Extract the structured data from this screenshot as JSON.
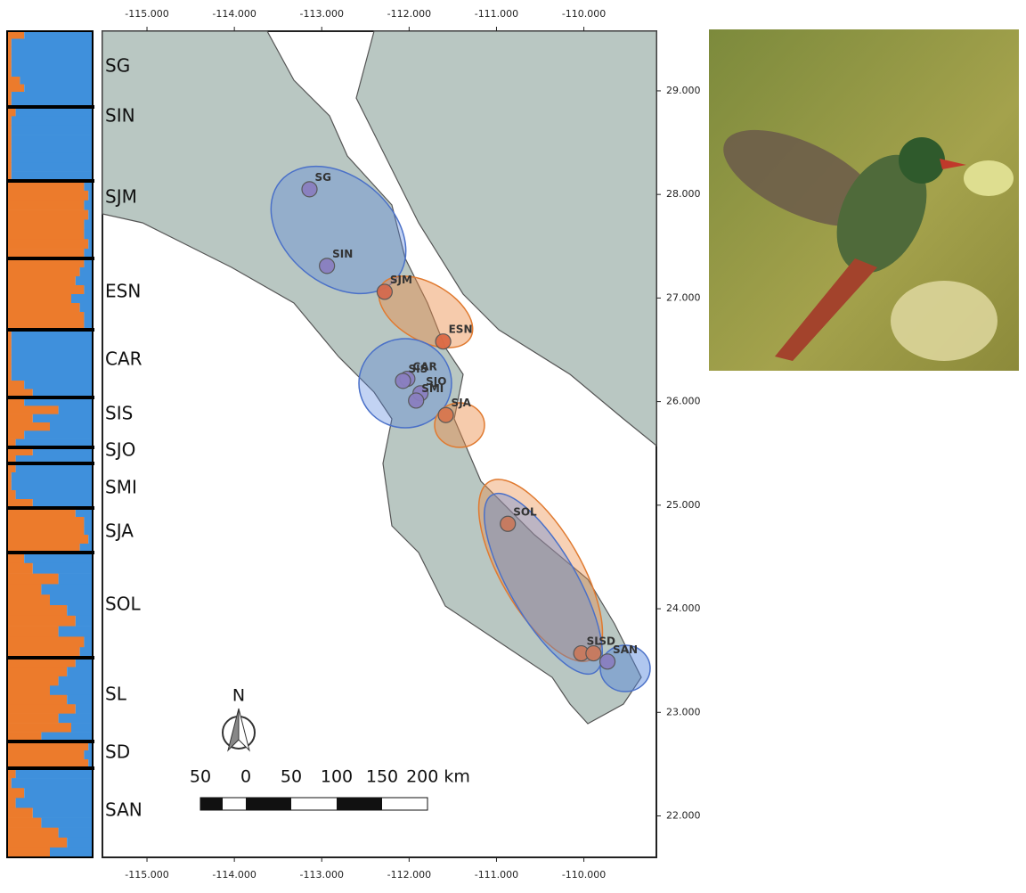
{
  "structure": {
    "groups": [
      {
        "label": "SG",
        "q": [
          0.2,
          0.05,
          0.05,
          0.05,
          0.05,
          0.05,
          0.15,
          0.2,
          0.05,
          0.05
        ]
      },
      {
        "label": "SIN",
        "q": [
          0.1,
          0.05,
          0.05,
          0.05,
          0.05,
          0.05,
          0.05,
          0.05
        ]
      },
      {
        "label": "SJM",
        "q": [
          0.9,
          0.95,
          0.9,
          0.95,
          0.9,
          0.9,
          0.95,
          0.9
        ]
      },
      {
        "label": "ESN",
        "q": [
          0.9,
          0.85,
          0.8,
          0.9,
          0.75,
          0.85,
          0.9,
          0.9
        ]
      },
      {
        "label": "CAR",
        "q": [
          0.05,
          0.05,
          0.05,
          0.05,
          0.05,
          0.05,
          0.2,
          0.3
        ]
      },
      {
        "label": "SIS",
        "q": [
          0.2,
          0.6,
          0.3,
          0.5,
          0.2,
          0.1
        ]
      },
      {
        "label": "SJO",
        "q": [
          0.3,
          0.1
        ]
      },
      {
        "label": "SMI",
        "q": [
          0.1,
          0.05,
          0.05,
          0.1,
          0.3
        ]
      },
      {
        "label": "SJA",
        "q": [
          0.8,
          0.9,
          0.9,
          0.95,
          0.85
        ]
      },
      {
        "label": "SOL",
        "q": [
          0.2,
          0.3,
          0.6,
          0.4,
          0.5,
          0.7,
          0.8,
          0.6,
          0.9,
          0.85
        ]
      },
      {
        "label": "SL",
        "q": [
          0.8,
          0.7,
          0.6,
          0.5,
          0.7,
          0.8,
          0.6,
          0.75,
          0.4
        ]
      },
      {
        "label": "SD",
        "q": [
          0.95,
          0.9,
          0.95
        ]
      },
      {
        "label": "SAN",
        "q": [
          0.1,
          0.05,
          0.2,
          0.1,
          0.3,
          0.4,
          0.6,
          0.7,
          0.5
        ]
      }
    ],
    "colors": [
      "#ec7b2c",
      "#3f90dc"
    ]
  },
  "map": {
    "xlim": [
      -115.51,
      -109.17
    ],
    "ylim": [
      21.6,
      29.576
    ],
    "xticks": [
      {
        "value": -115,
        "label": "-115.000"
      },
      {
        "value": -114,
        "label": "-114.000"
      },
      {
        "value": -113,
        "label": "-113.000"
      },
      {
        "value": -112,
        "label": "-112.000"
      },
      {
        "value": -111,
        "label": "-111.000"
      },
      {
        "value": -110,
        "label": "-110.000"
      }
    ],
    "yticks": [
      {
        "value": 29,
        "label": "29.000"
      },
      {
        "value": 28,
        "label": "28.000"
      },
      {
        "value": 27,
        "label": "27.000"
      },
      {
        "value": 26,
        "label": "26.000"
      },
      {
        "value": 25,
        "label": "25.000"
      },
      {
        "value": 24,
        "label": "24.000"
      },
      {
        "value": 23,
        "label": "23.000"
      },
      {
        "value": 22,
        "label": "22.000"
      }
    ],
    "sites": [
      {
        "label": "SG",
        "lon": -113.14,
        "lat": 28.05,
        "color": "#8a7fc0"
      },
      {
        "label": "SIN",
        "lon": -112.94,
        "lat": 27.31,
        "color": "#8a7fc0"
      },
      {
        "label": "SJM",
        "lon": -112.28,
        "lat": 27.06,
        "color": "#d46a4e"
      },
      {
        "label": "ESN",
        "lon": -111.61,
        "lat": 26.58,
        "color": "#dc6a45"
      },
      {
        "label": "CAR",
        "lon": -112.02,
        "lat": 26.22,
        "color": "#8a7fc0"
      },
      {
        "label": "SIS",
        "lon": -112.07,
        "lat": 26.2,
        "color": "#8a7fc0"
      },
      {
        "label": "SJO",
        "lon": -111.87,
        "lat": 26.08,
        "color": "#8a7fc0"
      },
      {
        "label": "SMI",
        "lon": -111.92,
        "lat": 26.01,
        "color": "#8a7fc0"
      },
      {
        "label": "SJA",
        "lon": -111.58,
        "lat": 25.87,
        "color": "#d8774f"
      },
      {
        "label": "SOL",
        "lon": -110.87,
        "lat": 24.82,
        "color": "#c97a5e"
      },
      {
        "label": "SL",
        "lon": -110.03,
        "lat": 23.57,
        "color": "#c97a5e"
      },
      {
        "label": "SD",
        "lon": -109.89,
        "lat": 23.57,
        "color": "#c97a5e"
      },
      {
        "label": "SAN",
        "lon": -109.73,
        "lat": 23.49,
        "color": "#8a7fc0"
      }
    ],
    "scale_labels": [
      "50",
      "0",
      "50",
      "100",
      "150",
      "200 km"
    ],
    "north": "N"
  }
}
